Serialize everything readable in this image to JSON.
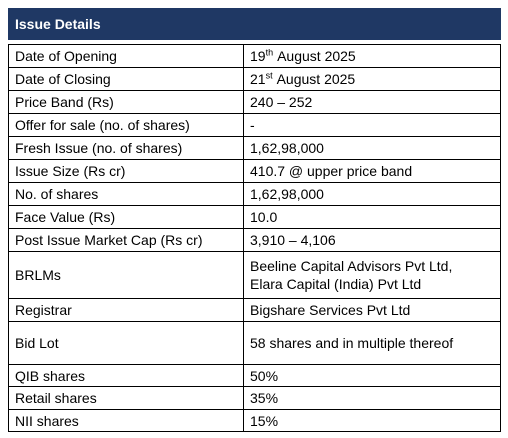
{
  "header": {
    "title": "Issue Details"
  },
  "table": {
    "rows": [
      {
        "label": "Date of Opening",
        "value": {
          "day": "19",
          "suffix": "th",
          "rest": "August 2025"
        }
      },
      {
        "label": "Date of Closing",
        "value": {
          "day": "21",
          "suffix": "st",
          "rest": "August 2025"
        }
      },
      {
        "label": "Price Band (Rs)",
        "value": [
          "240 – 252"
        ]
      },
      {
        "label": "Offer for sale (no. of shares)",
        "value": [
          "-"
        ]
      },
      {
        "label": "Fresh Issue (no. of shares)",
        "value": [
          "1,62,98,000"
        ]
      },
      {
        "label": "Issue Size (Rs cr)",
        "value": [
          "410.7 @ upper price band"
        ]
      },
      {
        "label": "No. of shares",
        "value": [
          "1,62,98,000"
        ]
      },
      {
        "label": "Face Value (Rs)",
        "value": [
          "10.0"
        ]
      },
      {
        "label": "Post Issue Market Cap (Rs cr)",
        "value": [
          "3,910 – 4,106"
        ]
      },
      {
        "label": "BRLMs",
        "value": [
          "Beeline Capital Advisors Pvt Ltd,",
          "Elara Capital (India) Pvt Ltd"
        ]
      },
      {
        "label": "Registrar",
        "value": [
          "Bigshare Services Pvt Ltd"
        ]
      },
      {
        "label": "Bid Lot",
        "value": [
          "58 shares and in multiple thereof"
        ]
      },
      {
        "label": "QIB shares",
        "value": [
          "50%"
        ]
      },
      {
        "label": "Retail shares",
        "value": [
          "35%"
        ]
      },
      {
        "label": "NII shares",
        "value": [
          "15%"
        ]
      }
    ]
  }
}
